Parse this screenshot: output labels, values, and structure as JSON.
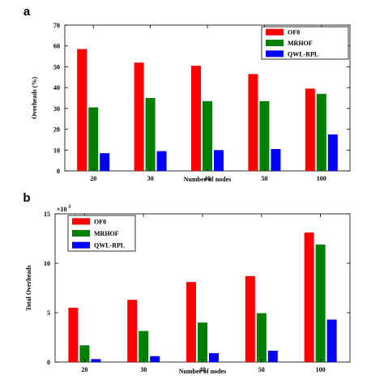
{
  "chart_data": [
    {
      "panel_label": "a",
      "type": "bar",
      "categories": [
        "20",
        "30",
        "40",
        "50",
        "100"
      ],
      "series": [
        {
          "name": "OF0",
          "color": "#ff0000",
          "values": [
            58.5,
            52,
            50.5,
            46.5,
            39.5
          ]
        },
        {
          "name": "MRHOF",
          "color": "#008000",
          "values": [
            30.5,
            35,
            33.5,
            33.5,
            37
          ]
        },
        {
          "name": "QWL-RPL",
          "color": "#0000ff",
          "values": [
            8.5,
            9.5,
            10,
            10.5,
            17.5
          ]
        }
      ],
      "xlabel": "Number of nodes",
      "ylabel": "Overheads (%)",
      "ylim": [
        0,
        70
      ],
      "yticks": [
        "0",
        "10",
        "20",
        "30",
        "40",
        "50",
        "60",
        "70"
      ],
      "grid": false,
      "legend_position": "top-right"
    },
    {
      "panel_label": "b",
      "type": "bar",
      "categories": [
        "20",
        "30",
        "40",
        "50",
        "100"
      ],
      "series": [
        {
          "name": "OF0",
          "color": "#ff0000",
          "values": [
            55000,
            63000,
            81000,
            87000,
            131000
          ]
        },
        {
          "name": "MRHOF",
          "color": "#008000",
          "values": [
            17000,
            31500,
            40000,
            49500,
            119000
          ]
        },
        {
          "name": "QWL-RPL",
          "color": "#0000ff",
          "values": [
            3000,
            6000,
            9000,
            11500,
            43000
          ]
        }
      ],
      "xlabel": "Number of nodes",
      "ylabel": "Total Overheads",
      "ylim": [
        0,
        150000
      ],
      "scale_factor": 10000,
      "scale_base": "×10",
      "scale_exponent": "4",
      "yticks": [
        "0",
        "5",
        "10",
        "15"
      ],
      "grid": false,
      "legend_position": "top-left"
    }
  ]
}
